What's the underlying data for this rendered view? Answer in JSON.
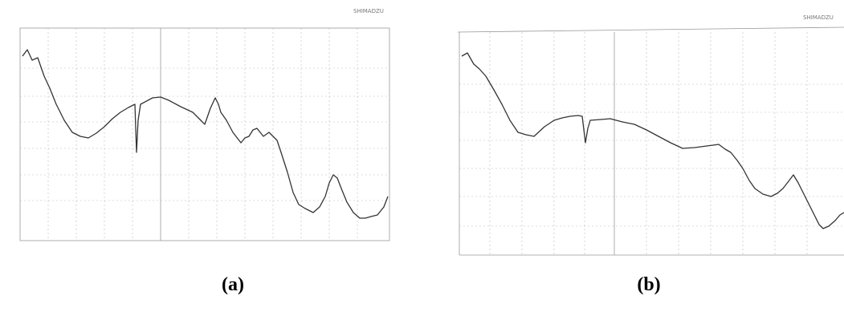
{
  "panels": [
    {
      "label": "(a)",
      "logo": "SHIMADZU"
    },
    {
      "label": "(b)",
      "logo": "SHIMADZU"
    }
  ]
}
